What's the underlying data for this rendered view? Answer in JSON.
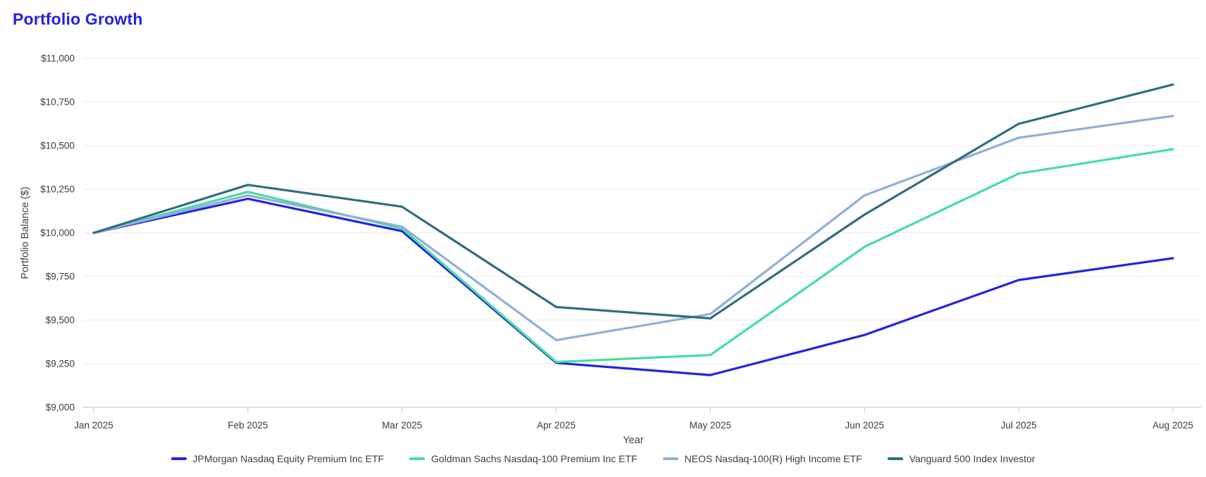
{
  "page": {
    "title": "Portfolio Growth",
    "title_color": "#2222df"
  },
  "chart_data": {
    "type": "line",
    "title": "Portfolio Growth",
    "xlabel": "Year",
    "ylabel": "Portfolio Balance ($)",
    "x_categories": [
      "Jan 2025",
      "Feb 2025",
      "Mar 2025",
      "Apr 2025",
      "May 2025",
      "Jun 2025",
      "Jul 2025",
      "Aug 2025"
    ],
    "ylim": [
      9000,
      11000
    ],
    "y_ticks": [
      {
        "value": 9000,
        "label": "$9,000"
      },
      {
        "value": 9250,
        "label": "$9,250"
      },
      {
        "value": 9500,
        "label": "$9,500"
      },
      {
        "value": 9750,
        "label": "$9,750"
      },
      {
        "value": 10000,
        "label": "$10,000"
      },
      {
        "value": 10250,
        "label": "$10,250"
      },
      {
        "value": 10500,
        "label": "$10,500"
      },
      {
        "value": 10750,
        "label": "$10,750"
      },
      {
        "value": 11000,
        "label": "$11,000"
      }
    ],
    "grid": "horizontal",
    "legend_position": "bottom",
    "series": [
      {
        "name": "JPMorgan Nasdaq Equity Premium Inc ETF",
        "color": "#2424e0",
        "values": [
          10000,
          10195,
          10010,
          9255,
          9185,
          9415,
          9730,
          9855
        ]
      },
      {
        "name": "Goldman Sachs Nasdaq-100 Premium Inc ETF",
        "color": "#45dda2",
        "values": [
          10000,
          10235,
          10025,
          9260,
          9300,
          9920,
          10340,
          10480
        ]
      },
      {
        "name": "NEOS Nasdaq-100(R) High Income ETF",
        "color": "#8fb0d5",
        "values": [
          10000,
          10215,
          10035,
          9385,
          9535,
          10215,
          10545,
          10670
        ]
      },
      {
        "name": "Vanguard 500 Index Investor",
        "color": "#2e6e80",
        "values": [
          10000,
          10275,
          10150,
          9575,
          9510,
          10105,
          10625,
          10850
        ]
      }
    ],
    "colors": {
      "axis": "#c9d4ec",
      "grid": "#e9e9e9",
      "tick_label": "#3c3c3c",
      "axis_title": "#424242"
    }
  }
}
